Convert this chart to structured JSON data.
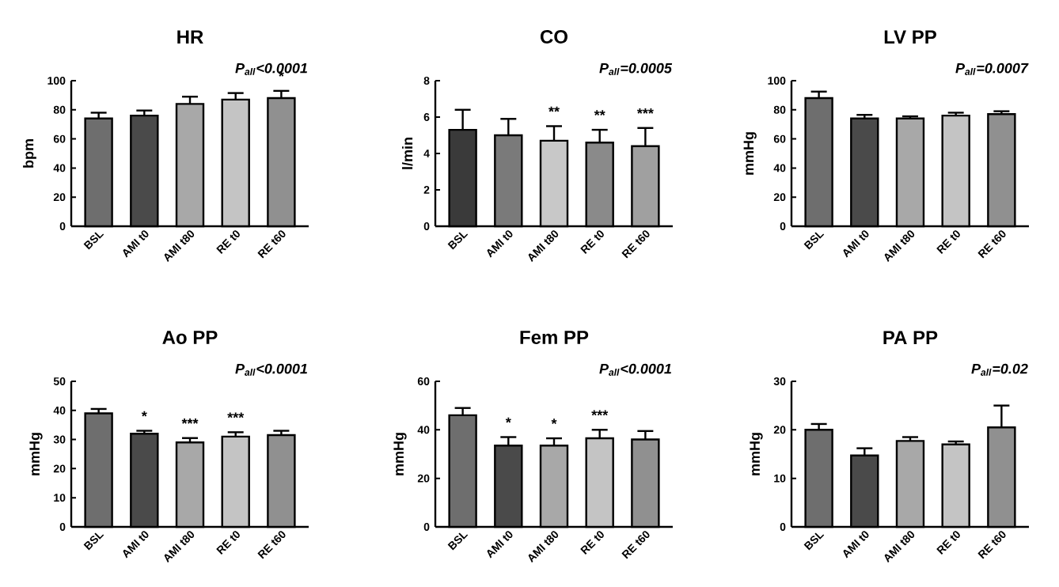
{
  "chart_data": [
    {
      "type": "bar",
      "title": "HR",
      "ylabel": "bpm",
      "categories": [
        "BSL",
        "AMI t0",
        "AMI t80",
        "RE t0",
        "RE t60"
      ],
      "values": [
        74,
        76,
        84,
        87,
        88
      ],
      "colors": [
        "#6e6e6e",
        "#4a4a4a",
        "#a8a8a8",
        "#c4c4c4",
        "#909090"
      ],
      "errors": [
        [
          74,
          78
        ],
        [
          76,
          79.5
        ],
        [
          84,
          89
        ],
        [
          87,
          91.5
        ],
        [
          88,
          93
        ]
      ],
      "ylim": [
        0,
        100
      ],
      "yticks": [
        0,
        20,
        40,
        60,
        80,
        100
      ],
      "annotations": [
        "P$_{all}$<0.0001",
        {
          "text": "*",
          "x": "RE t60",
          "y": 93
        }
      ]
    },
    {
      "type": "bar",
      "title": "CO",
      "ylabel": "l/min",
      "categories": [
        "BSL",
        "AMI t0",
        "AMI t80",
        "RE t0",
        "RE t60"
      ],
      "values": [
        5.3,
        5.0,
        4.7,
        4.6,
        4.4
      ],
      "colors": [
        "#3a3a3a",
        "#7a7a7a",
        "#c8c8c8",
        "#8a8a8a",
        "#a0a0a0"
      ],
      "errors": [
        [
          5.3,
          6.4
        ],
        [
          5.0,
          5.9
        ],
        [
          4.7,
          5.5
        ],
        [
          4.6,
          5.3
        ],
        [
          4.4,
          5.4
        ]
      ],
      "ylim": [
        0,
        8
      ],
      "yticks": [
        0,
        2,
        4,
        6,
        8
      ],
      "annotations": [
        "P$_{all}$=0.0005",
        {
          "text": "**",
          "x": "AMI t80",
          "y": 5.5
        },
        {
          "text": "**",
          "x": "RE t0",
          "y": 5.3
        },
        {
          "text": "***",
          "x": "RE t60",
          "y": 5.4
        }
      ]
    },
    {
      "type": "bar",
      "title": "LV PP",
      "ylabel": "mmHg",
      "categories": [
        "BSL",
        "AMI t0",
        "AMI t80",
        "RE t0",
        "RE t60"
      ],
      "values": [
        88,
        74,
        74,
        76,
        77
      ],
      "colors": [
        "#6e6e6e",
        "#4a4a4a",
        "#a8a8a8",
        "#c4c4c4",
        "#909090"
      ],
      "errors": [
        [
          88,
          92.5
        ],
        [
          74,
          76.5
        ],
        [
          74,
          75.5
        ],
        [
          76,
          78
        ],
        [
          77,
          79
        ]
      ],
      "ylim": [
        0,
        100
      ],
      "yticks": [
        0,
        20,
        40,
        60,
        80,
        100
      ],
      "annotations": [
        "P$_{all}$=0.0007"
      ]
    },
    {
      "type": "bar",
      "title": "Ao PP",
      "ylabel": "mmHg",
      "categories": [
        "BSL",
        "AMI t0",
        "AMI t80",
        "RE t0",
        "RE t60"
      ],
      "values": [
        39,
        32,
        29,
        31,
        31.5
      ],
      "colors": [
        "#6e6e6e",
        "#4a4a4a",
        "#a8a8a8",
        "#c4c4c4",
        "#909090"
      ],
      "errors": [
        [
          39,
          40.5
        ],
        [
          32,
          33
        ],
        [
          29,
          30.5
        ],
        [
          31,
          32.5
        ],
        [
          31.5,
          33
        ]
      ],
      "ylim": [
        0,
        50
      ],
      "yticks": [
        0,
        10,
        20,
        30,
        40,
        50
      ],
      "annotations": [
        "P$_{all}$<0.0001",
        {
          "text": "*",
          "x": "AMI t0",
          "y": 33
        },
        {
          "text": "***",
          "x": "AMI t80",
          "y": 30.5
        },
        {
          "text": "***",
          "x": "RE t0",
          "y": 32.5
        }
      ]
    },
    {
      "type": "bar",
      "title": "Fem PP",
      "ylabel": "mmHg",
      "categories": [
        "BSL",
        "AMI t0",
        "AMI t80",
        "RE t0",
        "RE t60"
      ],
      "values": [
        46,
        33.5,
        33.5,
        36.5,
        36
      ],
      "colors": [
        "#6e6e6e",
        "#4a4a4a",
        "#a8a8a8",
        "#c4c4c4",
        "#909090"
      ],
      "errors": [
        [
          46,
          49
        ],
        [
          33.5,
          37
        ],
        [
          33.5,
          36.5
        ],
        [
          36.5,
          40
        ],
        [
          36,
          39.5
        ]
      ],
      "ylim": [
        0,
        60
      ],
      "yticks": [
        0,
        20,
        40,
        60
      ],
      "annotations": [
        "P$_{all}$<0.0001",
        {
          "text": "*",
          "x": "AMI t0",
          "y": 37
        },
        {
          "text": "*",
          "x": "AMI t80",
          "y": 36.5
        },
        {
          "text": "***",
          "x": "RE t0",
          "y": 40
        }
      ]
    },
    {
      "type": "bar",
      "title": "PA PP",
      "ylabel": "mmHg",
      "categories": [
        "BSL",
        "AMI t0",
        "AMI t80",
        "RE t0",
        "RE t60"
      ],
      "values": [
        20,
        14.7,
        17.7,
        17,
        20.5
      ],
      "colors": [
        "#6e6e6e",
        "#4a4a4a",
        "#a8a8a8",
        "#c4c4c4",
        "#909090"
      ],
      "errors": [
        [
          20,
          21.2
        ],
        [
          14.7,
          16.2
        ],
        [
          17.7,
          18.5
        ],
        [
          17,
          17.6
        ],
        [
          20.5,
          25
        ]
      ],
      "ylim": [
        0,
        30
      ],
      "yticks": [
        0,
        10,
        20,
        30
      ],
      "annotations": [
        "P$_{all}$=0.02"
      ]
    }
  ]
}
